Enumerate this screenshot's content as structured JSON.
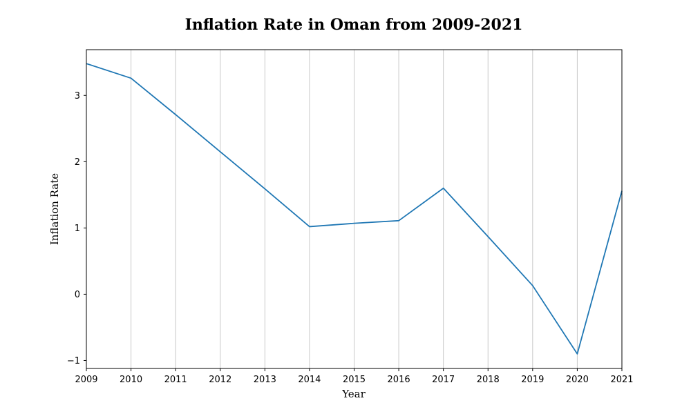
{
  "chart_data": {
    "type": "line",
    "title": "Inflation Rate in Oman from 2009-2021",
    "xlabel": "Year",
    "ylabel": "Inflation Rate",
    "x": [
      2009,
      2010,
      2011,
      2012,
      2013,
      2014,
      2015,
      2016,
      2017,
      2018,
      2019,
      2020,
      2021
    ],
    "series": [
      {
        "values": [
          3.48,
          3.26,
          2.71,
          2.15,
          1.59,
          1.02,
          1.07,
          1.11,
          1.6,
          0.87,
          0.13,
          -0.9,
          1.56
        ],
        "color": "#1f77b4"
      }
    ],
    "xlim": [
      2009,
      2021
    ],
    "ylim": [
      -1.12,
      3.69
    ],
    "xticks": [
      2009,
      2010,
      2011,
      2012,
      2013,
      2014,
      2015,
      2016,
      2017,
      2018,
      2019,
      2020,
      2021
    ],
    "yticks": [
      -1,
      0,
      1,
      2,
      3
    ],
    "ytick_labels": [
      "−1",
      "0",
      "1",
      "2",
      "3"
    ],
    "grid": "vertical"
  }
}
